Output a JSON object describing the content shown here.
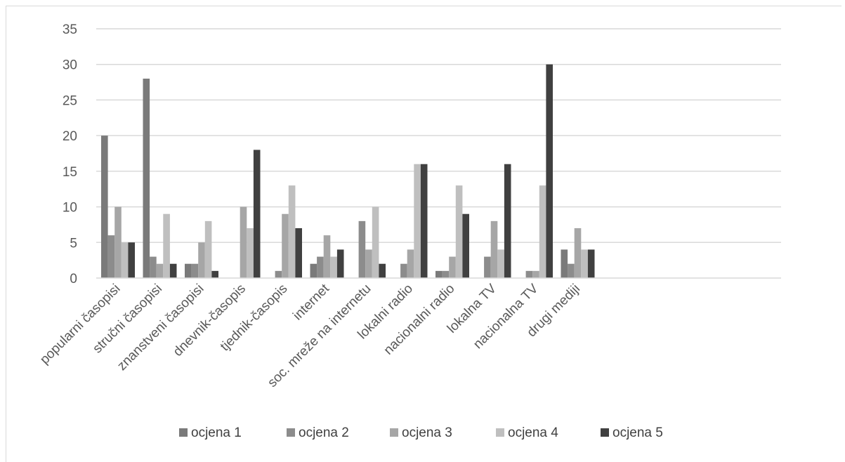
{
  "chart_data": {
    "type": "bar",
    "categories": [
      "popularni časopisi",
      "stručni časopisi",
      "znanstveni časopisi",
      "dnevnik-časopis",
      "tjednik-časopis",
      "internet",
      "soc. mreže na internetu",
      "lokalni radio",
      "nacionalni radio",
      "lokalna TV",
      "nacionalna TV",
      "drugi mediji"
    ],
    "series": [
      {
        "name": "ocjena 1",
        "color": "#7a7a7a",
        "values": [
          20,
          28,
          2,
          0,
          0,
          2,
          0,
          0,
          1,
          0,
          0,
          4
        ]
      },
      {
        "name": "ocjena 2",
        "color": "#8c8c8c",
        "values": [
          6,
          3,
          2,
          0,
          1,
          3,
          8,
          2,
          1,
          3,
          1,
          2
        ]
      },
      {
        "name": "ocjena 3",
        "color": "#a6a6a6",
        "values": [
          10,
          2,
          5,
          10,
          9,
          6,
          4,
          4,
          3,
          8,
          1,
          7
        ]
      },
      {
        "name": "ocjena 4",
        "color": "#bfbfbf",
        "values": [
          5,
          9,
          8,
          7,
          13,
          3,
          10,
          16,
          13,
          4,
          13,
          4
        ]
      },
      {
        "name": "ocjena 5",
        "color": "#404040",
        "values": [
          5,
          2,
          1,
          18,
          7,
          4,
          2,
          16,
          9,
          16,
          30,
          4
        ]
      }
    ],
    "yticks": [
      "0",
      "5",
      "10",
      "15",
      "20",
      "25",
      "30",
      "35"
    ],
    "ylim": [
      0,
      35
    ],
    "grid": true,
    "legend_position": "bottom",
    "title": "",
    "xlabel": "",
    "ylabel": ""
  }
}
